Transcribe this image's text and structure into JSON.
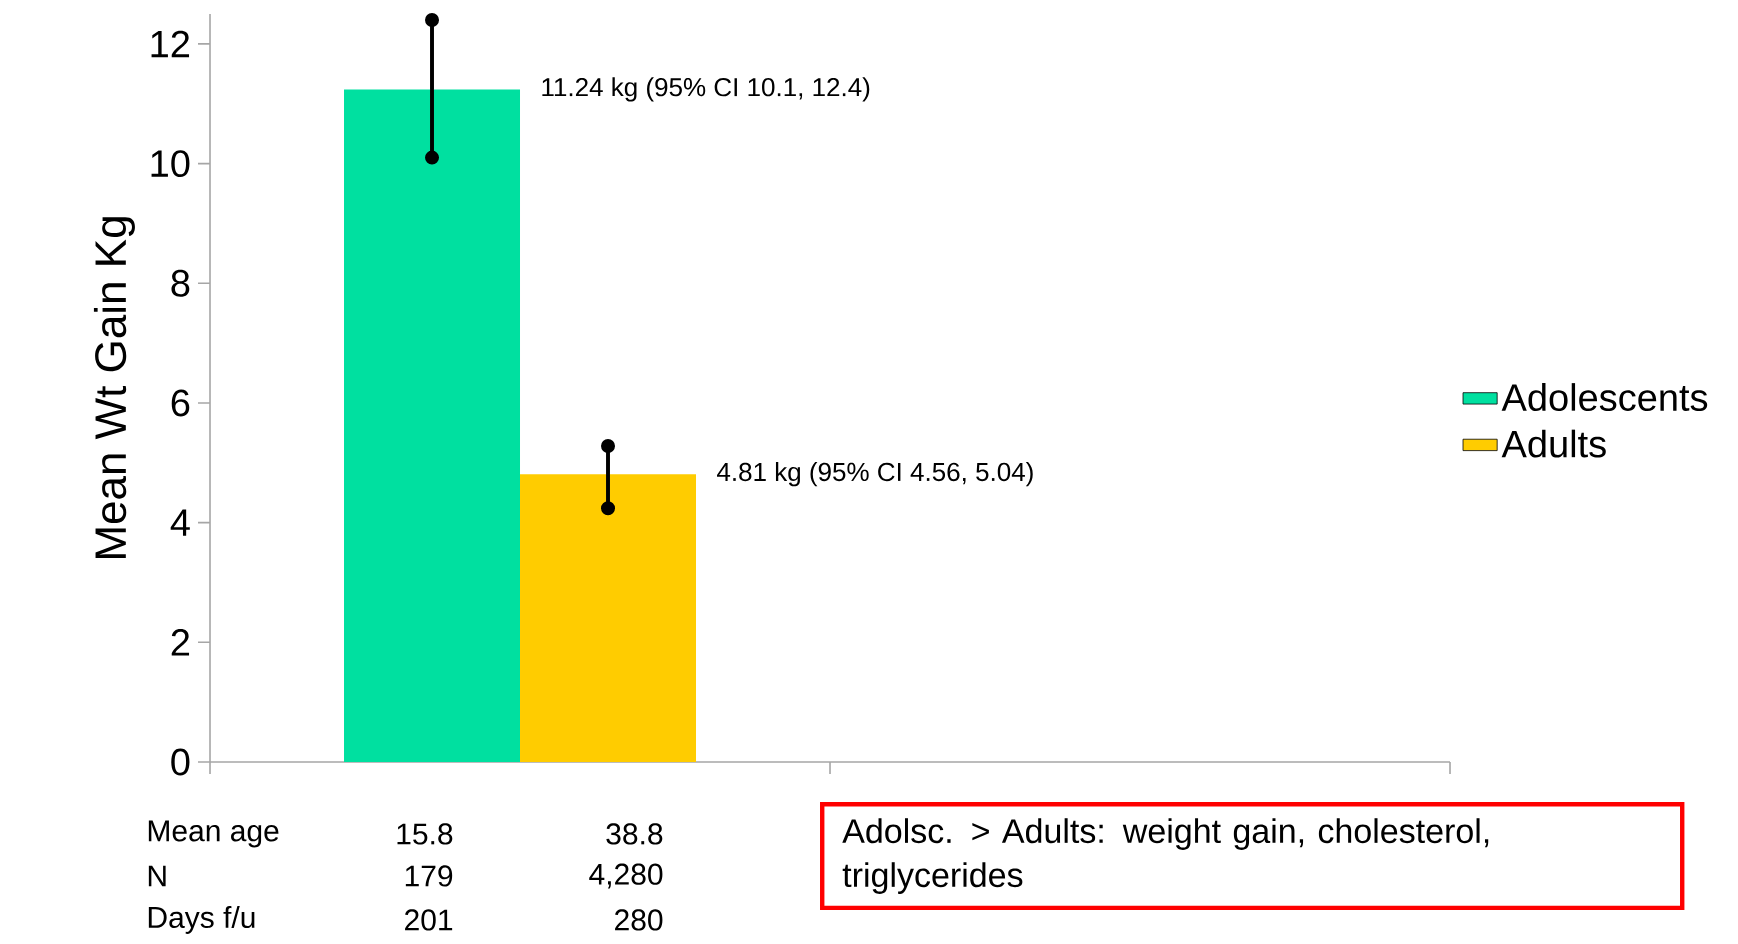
{
  "chart_data": {
    "type": "bar",
    "ylabel": "Mean Wt Gain Kg",
    "categories": [
      null,
      null
    ],
    "series": [
      {
        "name": "Adolescents",
        "color": "#00e0a0",
        "values": [
          11.24,
          null
        ],
        "errors": [
          [
            10.1,
            12.4
          ],
          null
        ]
      },
      {
        "name": "Adults",
        "color": "#ffcc00",
        "values": [
          4.81,
          null
        ],
        "errors": [
          [
            4.24,
            5.28
          ],
          null
        ]
      }
    ],
    "ylim": [
      0,
      12.5
    ],
    "yticks": [
      0,
      2,
      4,
      6,
      8,
      10,
      12
    ],
    "tick_labels": "y",
    "legend": "right",
    "annotations": [
      "11.24 kg (95% CI 10.1, 12.4)",
      "4.81 kg (95% CI 4.56, 5.04)",
      "Mean age",
      "15.8",
      "38.8",
      "N",
      "179",
      "4,280",
      "Days f/u",
      "201",
      "280",
      "Adolsc. > Adults: weight gain, cholesterol, triglycerides"
    ]
  }
}
